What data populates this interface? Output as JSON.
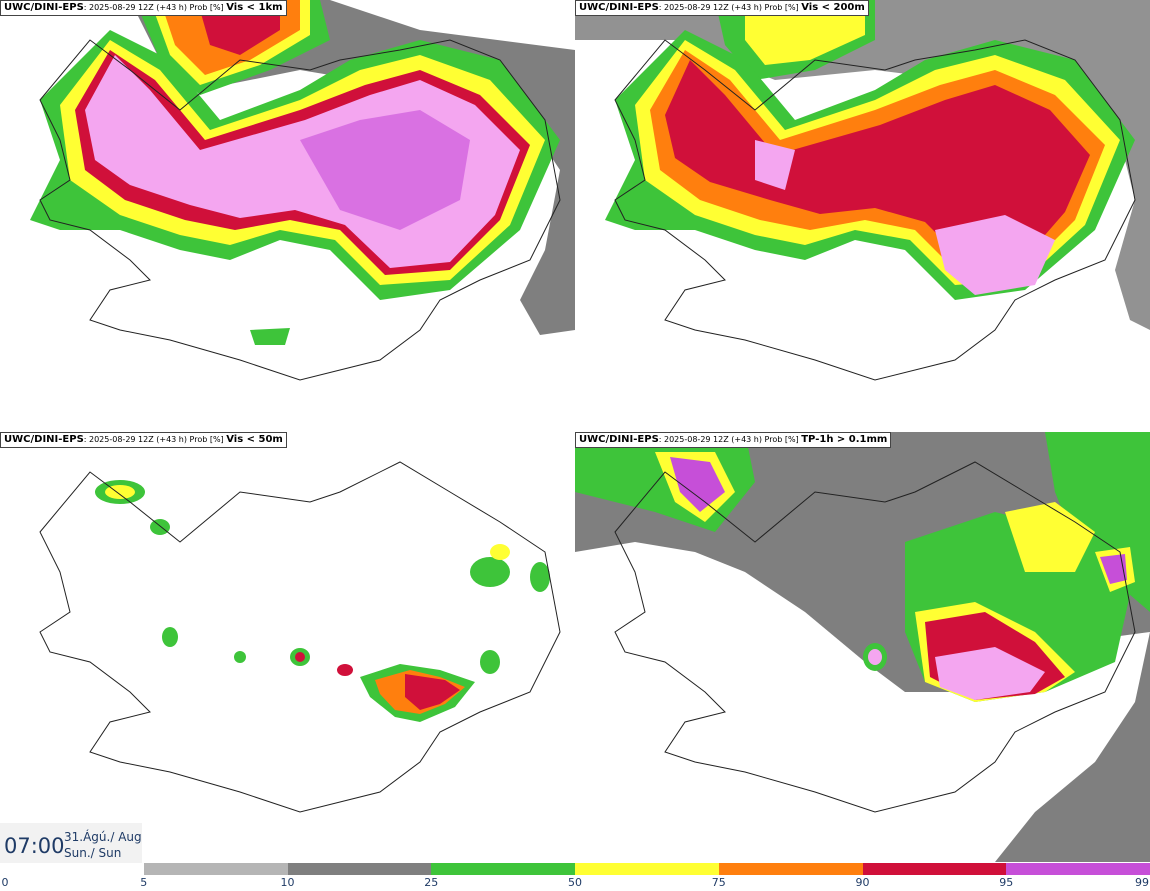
{
  "panels": [
    {
      "model": "UWC/DINI-EPS",
      "run": ": 2025-08-29 12Z (+43 h) Prob [%] ",
      "variable": "Vis < 1km"
    },
    {
      "model": "UWC/DINI-EPS",
      "run": ": 2025-08-29 12Z (+43 h) Prob [%] ",
      "variable": "Vis < 200m"
    },
    {
      "model": "UWC/DINI-EPS",
      "run": ": 2025-08-29 12Z (+43 h) Prob [%] ",
      "variable": "Vis < 50m"
    },
    {
      "model": "UWC/DINI-EPS",
      "run": ": 2025-08-29 12Z (+43 h) Prob [%] ",
      "variable": "TP-1h > 0.1mm"
    }
  ],
  "timestamp": {
    "time": "07:00",
    "date": "31.Ágú./ Aug",
    "day": "Sun./ Sun"
  },
  "colorbar": {
    "ticks": [
      "0",
      "5",
      "10",
      "25",
      "50",
      "75",
      "90",
      "95",
      "99"
    ],
    "colors": [
      "#ffffff",
      "#b5b5b5",
      "#7f7f7f",
      "#3ec43a",
      "#ffff33",
      "#ff7f0e",
      "#d0103a",
      "#c64fd8",
      "#f4a6f0"
    ]
  }
}
